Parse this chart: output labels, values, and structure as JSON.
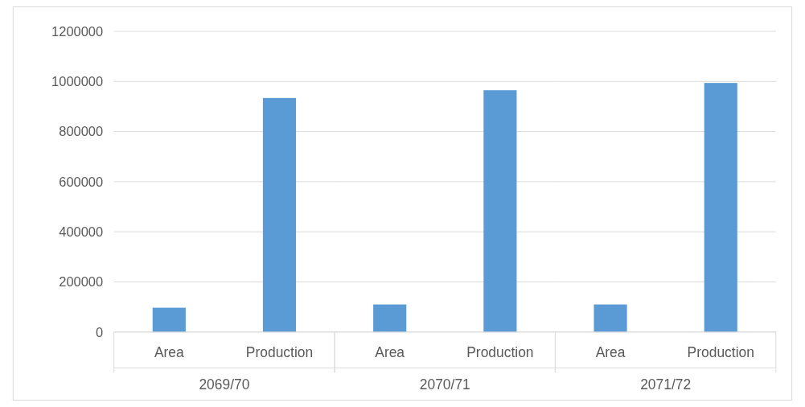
{
  "chart_data": [
    {
      "type": "bar",
      "xlabel": "2069/70",
      "categories": [
        "Area",
        "Production"
      ],
      "values": [
        97000,
        934000
      ],
      "color": "#5b9bd5",
      "ylim": [
        0,
        1200000
      ],
      "yticks": [
        0,
        200000,
        400000,
        600000,
        800000,
        1000000,
        1200000
      ],
      "grid": "y"
    },
    {
      "type": "bar",
      "xlabel": "2070/71",
      "categories": [
        "Area",
        "Production"
      ],
      "values": [
        110000,
        965000
      ],
      "color": "#5b9bd5",
      "ylim": [
        0,
        1200000
      ],
      "yticks": [
        0,
        200000,
        400000,
        600000,
        800000,
        1000000,
        1200000
      ],
      "grid": "y",
      "tick_labels": "x"
    },
    {
      "type": "bar",
      "xlabel": "2071/72",
      "categories": [
        "Area",
        "Production"
      ],
      "values": [
        110000,
        994000
      ],
      "color": "#5b9bd5",
      "ylim": [
        0,
        1200000
      ],
      "yticks": [
        0,
        200000,
        400000,
        600000,
        800000,
        1000000,
        1200000
      ],
      "grid": "y",
      "tick_labels": "x"
    }
  ]
}
